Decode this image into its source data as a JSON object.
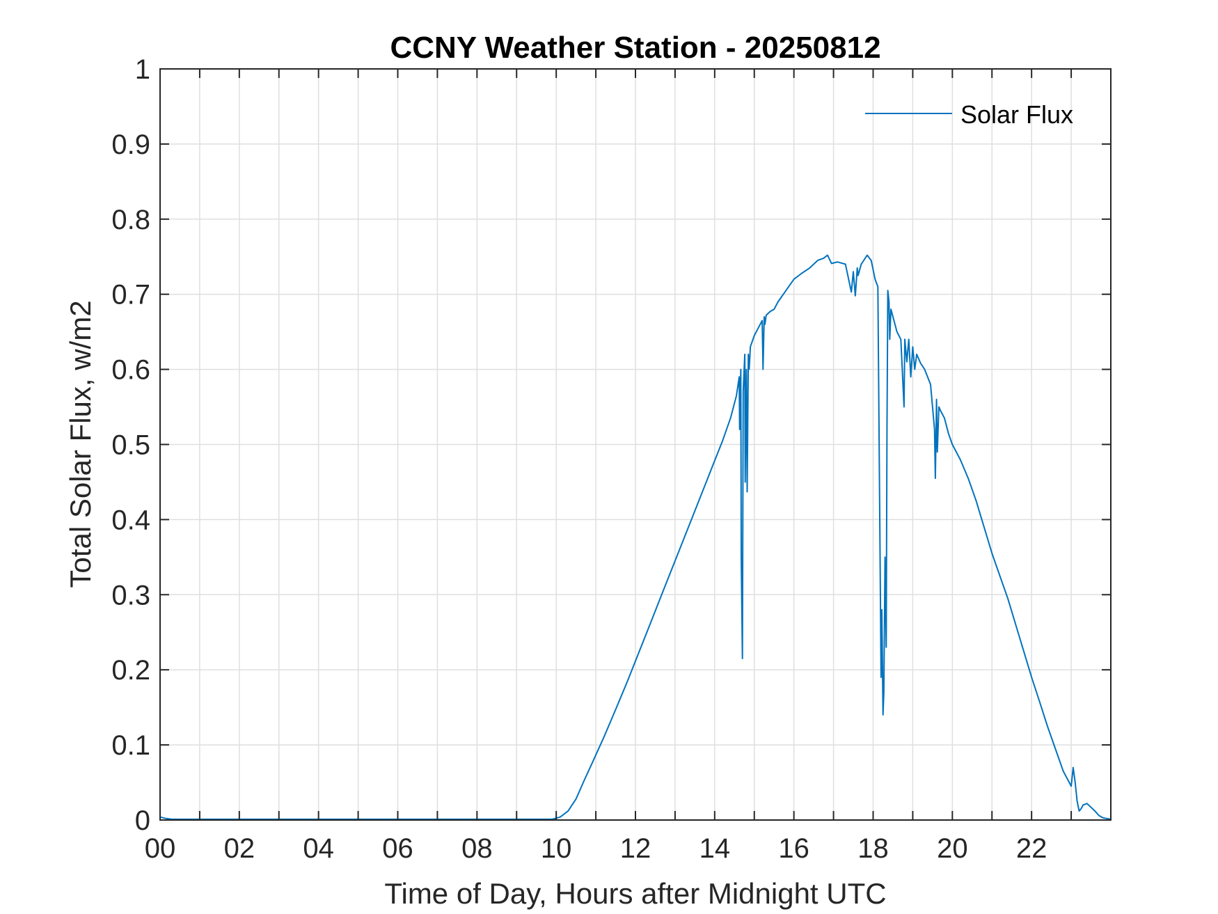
{
  "chart_data": {
    "type": "line",
    "title": "CCNY Weather Station - 20250812",
    "xlabel": "Time of Day, Hours after Midnight UTC",
    "ylabel": "Total Solar Flux, w/m2",
    "xlim": [
      0,
      24
    ],
    "ylim": [
      0,
      1
    ],
    "grid": true,
    "legend_location": "top-right",
    "x_ticks": [
      0,
      2,
      4,
      6,
      8,
      10,
      12,
      14,
      16,
      18,
      20,
      22
    ],
    "x_tick_labels": [
      "00",
      "02",
      "04",
      "06",
      "08",
      "10",
      "12",
      "14",
      "16",
      "18",
      "20",
      "22"
    ],
    "y_ticks": [
      0,
      0.1,
      0.2,
      0.3,
      0.4,
      0.5,
      0.6,
      0.7,
      0.8,
      0.9,
      1
    ],
    "y_tick_labels": [
      "0",
      "0.1",
      "0.2",
      "0.3",
      "0.4",
      "0.5",
      "0.6",
      "0.7",
      "0.8",
      "0.9",
      "1"
    ],
    "series": [
      {
        "name": "Solar Flux",
        "color": "#0072BD",
        "x": [
          0,
          0.15,
          0.3,
          1,
          2,
          3,
          4,
          5,
          6,
          7,
          8,
          9,
          9.9,
          10.1,
          10.3,
          10.5,
          10.7,
          10.9,
          11.2,
          11.5,
          11.8,
          12.1,
          12.4,
          12.7,
          13.0,
          13.3,
          13.6,
          13.9,
          14.2,
          14.4,
          14.55,
          14.62,
          14.63,
          14.66,
          14.67,
          14.7,
          14.72,
          14.76,
          14.77,
          14.8,
          14.82,
          14.85,
          14.87,
          14.9,
          15.0,
          15.1,
          15.2,
          15.22,
          15.25,
          15.27,
          15.3,
          15.4,
          15.5,
          15.6,
          15.8,
          16.0,
          16.2,
          16.4,
          16.6,
          16.75,
          16.85,
          16.95,
          17.1,
          17.3,
          17.45,
          17.5,
          17.55,
          17.6,
          17.62,
          17.7,
          17.85,
          17.95,
          18.05,
          18.12,
          18.2,
          18.22,
          18.25,
          18.27,
          18.3,
          18.33,
          18.35,
          18.37,
          18.4,
          18.42,
          18.45,
          18.5,
          18.6,
          18.7,
          18.78,
          18.8,
          18.85,
          18.9,
          18.95,
          19.0,
          19.05,
          19.1,
          19.2,
          19.3,
          19.45,
          19.55,
          19.57,
          19.6,
          19.62,
          19.66,
          19.7,
          19.8,
          19.9,
          20.0,
          20.2,
          20.4,
          20.6,
          20.8,
          21.0,
          21.2,
          21.4,
          21.6,
          21.8,
          22.0,
          22.2,
          22.4,
          22.6,
          22.8,
          23.0,
          23.05,
          23.1,
          23.15,
          23.2,
          23.25,
          23.3,
          23.4,
          23.5,
          23.6,
          23.7,
          23.8,
          23.9,
          24.0
        ],
        "y": [
          0.004,
          0.002,
          0.001,
          0.001,
          0.001,
          0.001,
          0.001,
          0.001,
          0.001,
          0.001,
          0.001,
          0.001,
          0.001,
          0.004,
          0.012,
          0.028,
          0.052,
          0.075,
          0.11,
          0.147,
          0.185,
          0.225,
          0.265,
          0.305,
          0.345,
          0.385,
          0.425,
          0.465,
          0.505,
          0.535,
          0.565,
          0.59,
          0.52,
          0.6,
          0.35,
          0.215,
          0.57,
          0.62,
          0.45,
          0.6,
          0.437,
          0.62,
          0.6,
          0.63,
          0.645,
          0.655,
          0.665,
          0.6,
          0.67,
          0.66,
          0.672,
          0.677,
          0.68,
          0.69,
          0.705,
          0.72,
          0.728,
          0.735,
          0.745,
          0.748,
          0.752,
          0.741,
          0.743,
          0.74,
          0.703,
          0.73,
          0.698,
          0.735,
          0.725,
          0.74,
          0.752,
          0.745,
          0.72,
          0.71,
          0.19,
          0.28,
          0.14,
          0.17,
          0.35,
          0.23,
          0.52,
          0.705,
          0.69,
          0.64,
          0.68,
          0.67,
          0.65,
          0.64,
          0.55,
          0.64,
          0.61,
          0.64,
          0.59,
          0.63,
          0.6,
          0.62,
          0.608,
          0.6,
          0.58,
          0.52,
          0.455,
          0.56,
          0.49,
          0.55,
          0.545,
          0.535,
          0.515,
          0.5,
          0.48,
          0.455,
          0.425,
          0.39,
          0.355,
          0.325,
          0.295,
          0.26,
          0.225,
          0.19,
          0.158,
          0.125,
          0.095,
          0.065,
          0.045,
          0.07,
          0.05,
          0.025,
          0.012,
          0.015,
          0.02,
          0.022,
          0.017,
          0.012,
          0.006,
          0.003,
          0.002,
          0.001
        ]
      }
    ]
  }
}
